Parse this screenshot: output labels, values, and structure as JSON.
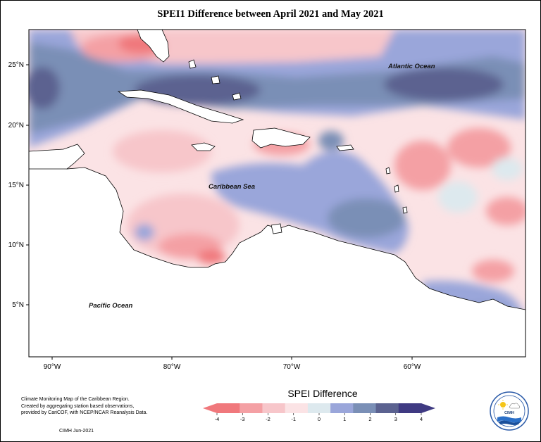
{
  "title": "SPEI1 Difference between April 2021 and May 2021",
  "axes": {
    "lat_labels": [
      "25°N",
      "20°N",
      "15°N",
      "10°N",
      "5°N"
    ],
    "lon_labels": [
      "90°W",
      "80°W",
      "70°W",
      "60°W"
    ]
  },
  "map_labels": {
    "atlantic": "Atlantic Ocean",
    "caribbean": "Caribbean Sea",
    "pacific": "Pacific Ocean"
  },
  "legend": {
    "title": "SPEI Difference",
    "ticks": [
      "-4",
      "-3",
      "-2",
      "-1",
      "0",
      "1",
      "2",
      "3",
      "4"
    ],
    "colors": [
      "#f0787c",
      "#f4a0a4",
      "#f7c6ca",
      "#fbe3e5",
      "#dde9ee",
      "#9aa6da",
      "#7a8fb6",
      "#5b6290",
      "#3f3a82"
    ]
  },
  "credit": {
    "line1": "Climate Monitoring Map of the Caribbean Region.",
    "line2": "Created by aggregating station based observations,",
    "line3": "provided by CariCOF, with NCEP/NCAR Reanalysis Data.",
    "date": "CIMH  Jun-2021"
  },
  "logo": {
    "text": "CIMH",
    "arc_text": "CARIBBEAN INSTITUTE FOR METEOROLOGY & HYDROLOGY"
  }
}
